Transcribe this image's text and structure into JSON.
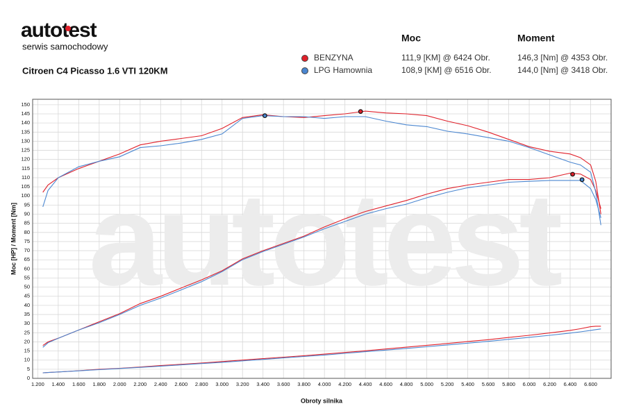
{
  "logo": {
    "brand": "autotest",
    "tagline": "serwis samochodowy"
  },
  "chart_data": {
    "type": "line",
    "title": "Citroen C4 Picasso 1.6 VTI 120KM",
    "xlabel": "Obroty silnika",
    "ylabel": "Moc [HP] / Moment [Nm]",
    "columns": [
      "Moc",
      "Moment"
    ],
    "x": [
      1250,
      1300,
      1400,
      1600,
      1800,
      2000,
      2200,
      2400,
      2600,
      2800,
      3000,
      3200,
      3400,
      3600,
      3800,
      4000,
      4200,
      4400,
      4600,
      4800,
      5000,
      5200,
      5400,
      5600,
      5800,
      6000,
      6200,
      6400,
      6500,
      6600,
      6650,
      6700
    ],
    "xlim": [
      1150,
      6800
    ],
    "ylim": [
      0,
      153
    ],
    "xticks": [
      {
        "value": 1200,
        "label": "1.200"
      },
      {
        "value": 1400,
        "label": "1.400"
      },
      {
        "value": 1600,
        "label": "1.600"
      },
      {
        "value": 1800,
        "label": "1.800"
      },
      {
        "value": 2000,
        "label": "2.000"
      },
      {
        "value": 2200,
        "label": "2.200"
      },
      {
        "value": 2400,
        "label": "2.400"
      },
      {
        "value": 2600,
        "label": "2.600"
      },
      {
        "value": 2800,
        "label": "2.800"
      },
      {
        "value": 3000,
        "label": "3.000"
      },
      {
        "value": 3200,
        "label": "3.200"
      },
      {
        "value": 3400,
        "label": "3.400"
      },
      {
        "value": 3600,
        "label": "3.600"
      },
      {
        "value": 3800,
        "label": "3.800"
      },
      {
        "value": 4000,
        "label": "4.000"
      },
      {
        "value": 4200,
        "label": "4.200"
      },
      {
        "value": 4400,
        "label": "4.400"
      },
      {
        "value": 4600,
        "label": "4.600"
      },
      {
        "value": 4800,
        "label": "4.800"
      },
      {
        "value": 5000,
        "label": "5.000"
      },
      {
        "value": 5200,
        "label": "5.200"
      },
      {
        "value": 5400,
        "label": "5.400"
      },
      {
        "value": 5600,
        "label": "5.600"
      },
      {
        "value": 5800,
        "label": "5.800"
      },
      {
        "value": 6000,
        "label": "6.000"
      },
      {
        "value": 6200,
        "label": "6.200"
      },
      {
        "value": 6400,
        "label": "6.400"
      },
      {
        "value": 6600,
        "label": "6.600"
      }
    ],
    "yticks": [
      0,
      5,
      10,
      15,
      20,
      25,
      30,
      35,
      40,
      45,
      50,
      55,
      60,
      65,
      70,
      75,
      80,
      85,
      90,
      95,
      100,
      105,
      110,
      115,
      120,
      125,
      130,
      135,
      140,
      145,
      150
    ],
    "grid": true,
    "series": [
      {
        "name": "BENZYNA",
        "color": "#e0202a",
        "values": [
          18,
          20,
          22,
          26.5,
          31,
          35.5,
          41,
          45,
          49.5,
          54,
          59,
          65.5,
          70,
          74,
          78,
          83,
          87.5,
          91.5,
          94.5,
          97.5,
          101,
          104,
          106,
          107.5,
          109,
          109,
          110,
          112.5,
          112,
          109,
          103,
          93
        ],
        "torque": [
          102,
          106,
          110,
          115,
          119,
          123,
          128,
          130,
          131.5,
          133,
          137,
          143,
          144.5,
          143.5,
          143,
          144,
          145,
          146.5,
          145.5,
          145,
          144,
          141,
          138.5,
          135,
          131,
          127,
          124.5,
          123,
          121,
          117,
          108,
          90
        ],
        "loss": [
          3,
          3.2,
          3.5,
          4.2,
          5,
          5.5,
          6.2,
          7,
          7.7,
          8.4,
          9.2,
          10,
          10.8,
          11.6,
          12.4,
          13.3,
          14.2,
          15.1,
          16.1,
          17.1,
          18.1,
          19.1,
          20.2,
          21.2,
          22.4,
          23.6,
          24.9,
          26.3,
          27.2,
          28.3,
          28.6,
          28.6
        ],
        "peaks": [
          {
            "value": 111.9,
            "rpm": 6424,
            "label": "111,9 [KM] @ 6424 Obr."
          },
          {
            "value": 146.3,
            "rpm": 4353,
            "label": "146,3 [Nm] @ 4353 Obr."
          }
        ]
      },
      {
        "name": "LPG Hamownia",
        "color": "#4a86d0",
        "values": [
          17,
          19.5,
          22,
          26.5,
          30.5,
          35,
          40,
          44,
          48.5,
          53,
          58.5,
          65,
          69.5,
          73.5,
          77.5,
          82,
          86,
          90,
          93,
          95.5,
          99,
          102,
          104.5,
          106,
          107.5,
          108,
          108.5,
          108.5,
          108.5,
          104,
          98,
          88
        ],
        "torque": [
          94,
          103,
          110,
          116,
          119,
          121.5,
          126.5,
          127.5,
          129,
          131,
          134,
          142.5,
          144,
          143.5,
          143.5,
          142.5,
          143.5,
          143.5,
          141,
          139,
          138,
          135.5,
          134,
          132,
          130,
          126.5,
          122.5,
          118.5,
          117,
          113,
          102,
          84
        ],
        "loss": [
          3,
          3.2,
          3.5,
          4.1,
          4.8,
          5.4,
          6,
          6.7,
          7.4,
          8.1,
          8.8,
          9.6,
          10.4,
          11.2,
          12,
          12.8,
          13.7,
          14.6,
          15.5,
          16.4,
          17.3,
          18.3,
          19.3,
          20.3,
          21.4,
          22.5,
          23.6,
          24.8,
          25.5,
          26.3,
          26.7,
          27.1
        ],
        "peaks": [
          {
            "value": 108.9,
            "rpm": 6516,
            "label": "108,9 [KM] @ 6516 Obr."
          },
          {
            "value": 144.0,
            "rpm": 3418,
            "label": "144,0 [Nm] @ 3418 Obr."
          }
        ]
      }
    ]
  }
}
